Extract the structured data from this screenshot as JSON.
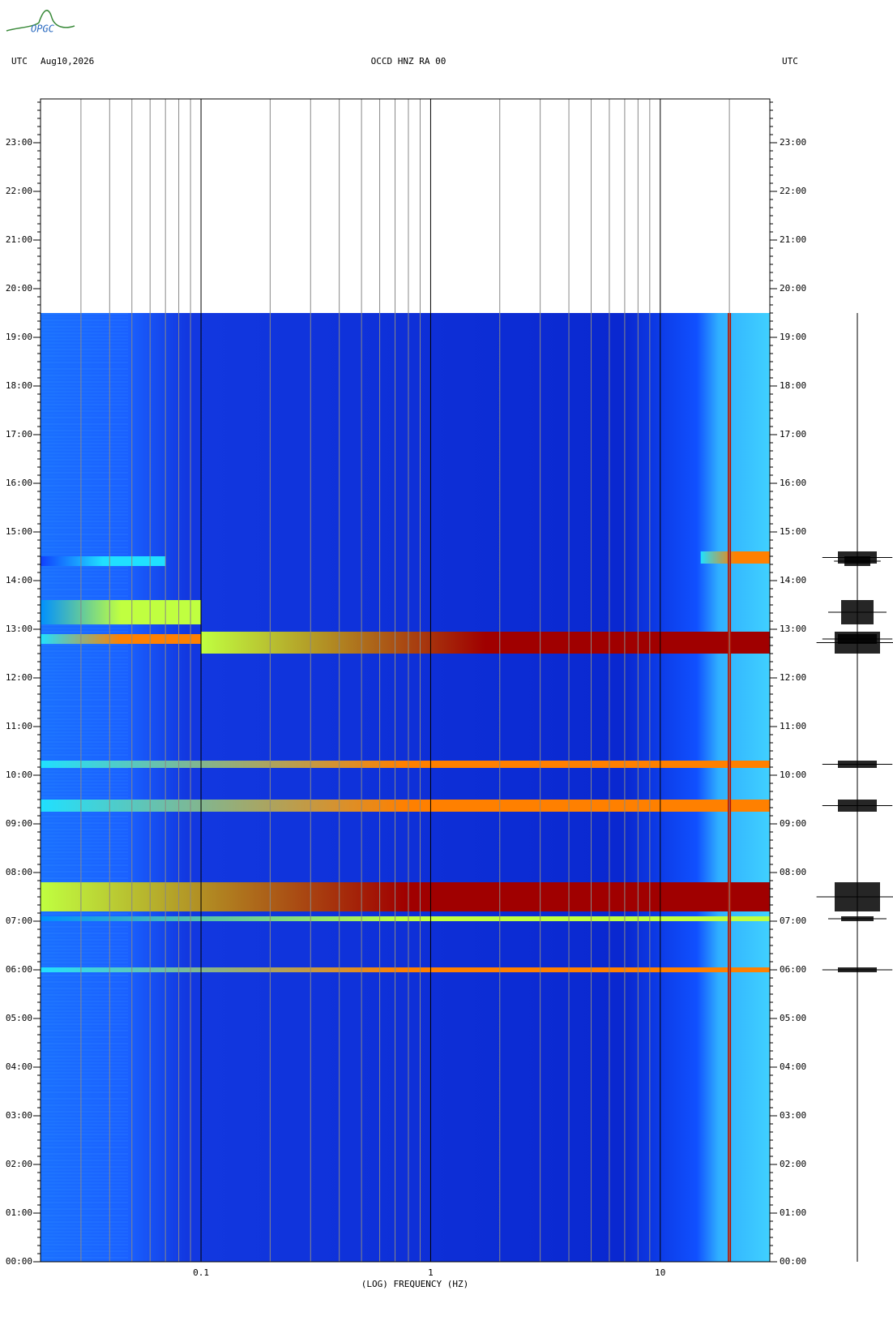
{
  "logo": "OPGC",
  "chart_data": {
    "type": "spectrogram",
    "header_left": "UTC",
    "date": "Aug10,2026",
    "title": "OCCD HNZ RA 00",
    "header_right": "UTC",
    "x_label": "(LOG) FREQUENCY (HZ)",
    "x_log": true,
    "xlim": [
      0.02,
      30
    ],
    "xticks": [
      0.1,
      1,
      10
    ],
    "ylim": [
      0,
      23.9
    ],
    "yticks": [
      {
        "value": 0,
        "label": "00:00"
      },
      {
        "value": 1,
        "label": "01:00"
      },
      {
        "value": 2,
        "label": "02:00"
      },
      {
        "value": 3,
        "label": "03:00"
      },
      {
        "value": 4,
        "label": "04:00"
      },
      {
        "value": 5,
        "label": "05:00"
      },
      {
        "value": 6,
        "label": "06:00"
      },
      {
        "value": 7,
        "label": "07:00"
      },
      {
        "value": 8,
        "label": "08:00"
      },
      {
        "value": 9,
        "label": "09:00"
      },
      {
        "value": 10,
        "label": "10:00"
      },
      {
        "value": 11,
        "label": "11:00"
      },
      {
        "value": 12,
        "label": "12:00"
      },
      {
        "value": 13,
        "label": "13:00"
      },
      {
        "value": 14,
        "label": "14:00"
      },
      {
        "value": 15,
        "label": "15:00"
      },
      {
        "value": 16,
        "label": "16:00"
      },
      {
        "value": 17,
        "label": "17:00"
      },
      {
        "value": 18,
        "label": "18:00"
      },
      {
        "value": 19,
        "label": "19:00"
      },
      {
        "value": 20,
        "label": "20:00"
      },
      {
        "value": 21,
        "label": "21:00"
      },
      {
        "value": 22,
        "label": "22:00"
      },
      {
        "value": 23,
        "label": "23:00"
      }
    ],
    "data_end": 19.5,
    "spectral_lines": [
      20
    ],
    "colormap": [
      "#0a1fd0",
      "#1040ff",
      "#0090ff",
      "#20e0ff",
      "#c0ff40",
      "#ff8000",
      "#a00000"
    ],
    "bands": [
      {
        "t0": 12.5,
        "t1": 12.95,
        "f0": 0.1,
        "f1": 30,
        "level": 6
      },
      {
        "t0": 12.7,
        "t1": 12.9,
        "f0": 0.02,
        "f1": 0.1,
        "level": 5
      },
      {
        "t0": 13.1,
        "t1": 13.6,
        "f0": 0.02,
        "f1": 0.1,
        "level": 4
      },
      {
        "t0": 14.3,
        "t1": 14.5,
        "f0": 0.02,
        "f1": 0.07,
        "level": 3
      },
      {
        "t0": 14.35,
        "t1": 14.6,
        "f0": 15,
        "f1": 30,
        "level": 5
      },
      {
        "t0": 10.15,
        "t1": 10.3,
        "f0": 0.02,
        "f1": 30,
        "level": 5
      },
      {
        "t0": 9.25,
        "t1": 9.5,
        "f0": 0.02,
        "f1": 30,
        "level": 5
      },
      {
        "t0": 7.2,
        "t1": 7.8,
        "f0": 0.02,
        "f1": 30,
        "level": 6
      },
      {
        "t0": 7.0,
        "t1": 7.1,
        "f0": 0.02,
        "f1": 30,
        "level": 4
      },
      {
        "t0": 5.95,
        "t1": 6.05,
        "f0": 0.02,
        "f1": 30,
        "level": 5
      }
    ]
  }
}
